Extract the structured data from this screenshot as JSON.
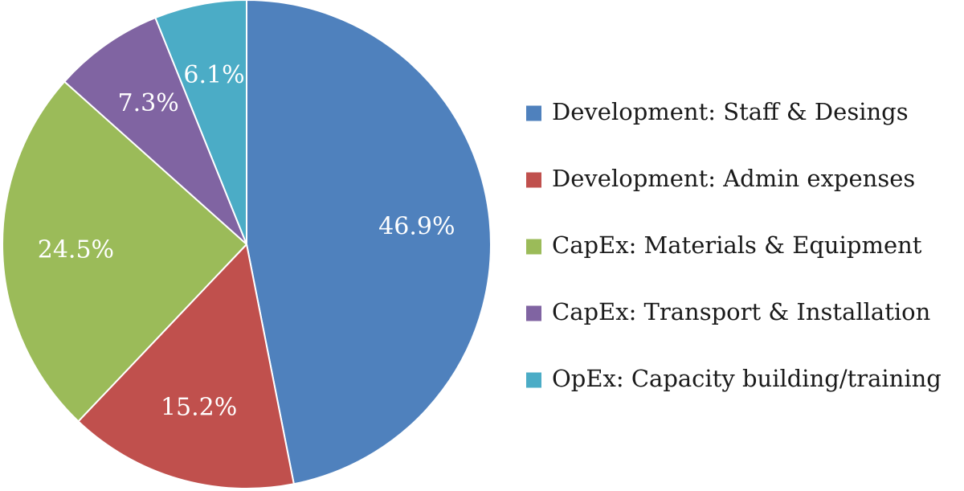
{
  "chart_data": {
    "type": "pie",
    "title": "",
    "unit": "%",
    "start_angle_deg": 0,
    "direction": "clockwise",
    "legend_position": "right",
    "slices": [
      {
        "label": "Development: Staff & Desings",
        "value": 46.9,
        "value_label": "46.9%",
        "color": "#4f81bd"
      },
      {
        "label": "Development: Admin expenses",
        "value": 15.2,
        "value_label": "15.2%",
        "color": "#c0504d"
      },
      {
        "label": "CapEx: Materials & Equipment",
        "value": 24.5,
        "value_label": "24.5%",
        "color": "#9bbb59"
      },
      {
        "label": "CapEx: Transport & Installation",
        "value": 7.3,
        "value_label": "7.3%",
        "color": "#8064a2"
      },
      {
        "label": "OpEx: Capacity building/training",
        "value": 6.1,
        "value_label": "6.1%",
        "color": "#4bacc6"
      }
    ]
  }
}
